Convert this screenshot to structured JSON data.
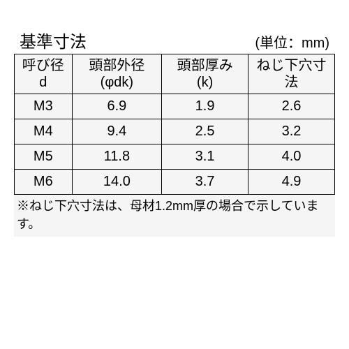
{
  "title": "基準寸法",
  "unit": "(単位：mm)",
  "table": {
    "columns": [
      {
        "line1": "呼び径",
        "line2": "d"
      },
      {
        "line1": "頭部外径",
        "line2": "(φdk)"
      },
      {
        "line1": "頭部厚み",
        "line2": "(k)"
      },
      {
        "line1": "ねじ下穴寸法",
        "line2": ""
      }
    ],
    "rows": [
      [
        "M3",
        "6.9",
        "1.9",
        "2.6"
      ],
      [
        "M4",
        "9.4",
        "2.5",
        "3.2"
      ],
      [
        "M5",
        "11.8",
        "3.1",
        "4.0"
      ],
      [
        "M6",
        "14.0",
        "3.7",
        "4.9"
      ]
    ],
    "background_color": "#f5f5f5",
    "border_color": "#000000",
    "header_fontsize": 20,
    "cell_fontsize": 20
  },
  "footnote": "※ねじ下穴寸法は、母材1.2mm厚の場合で示しています。"
}
